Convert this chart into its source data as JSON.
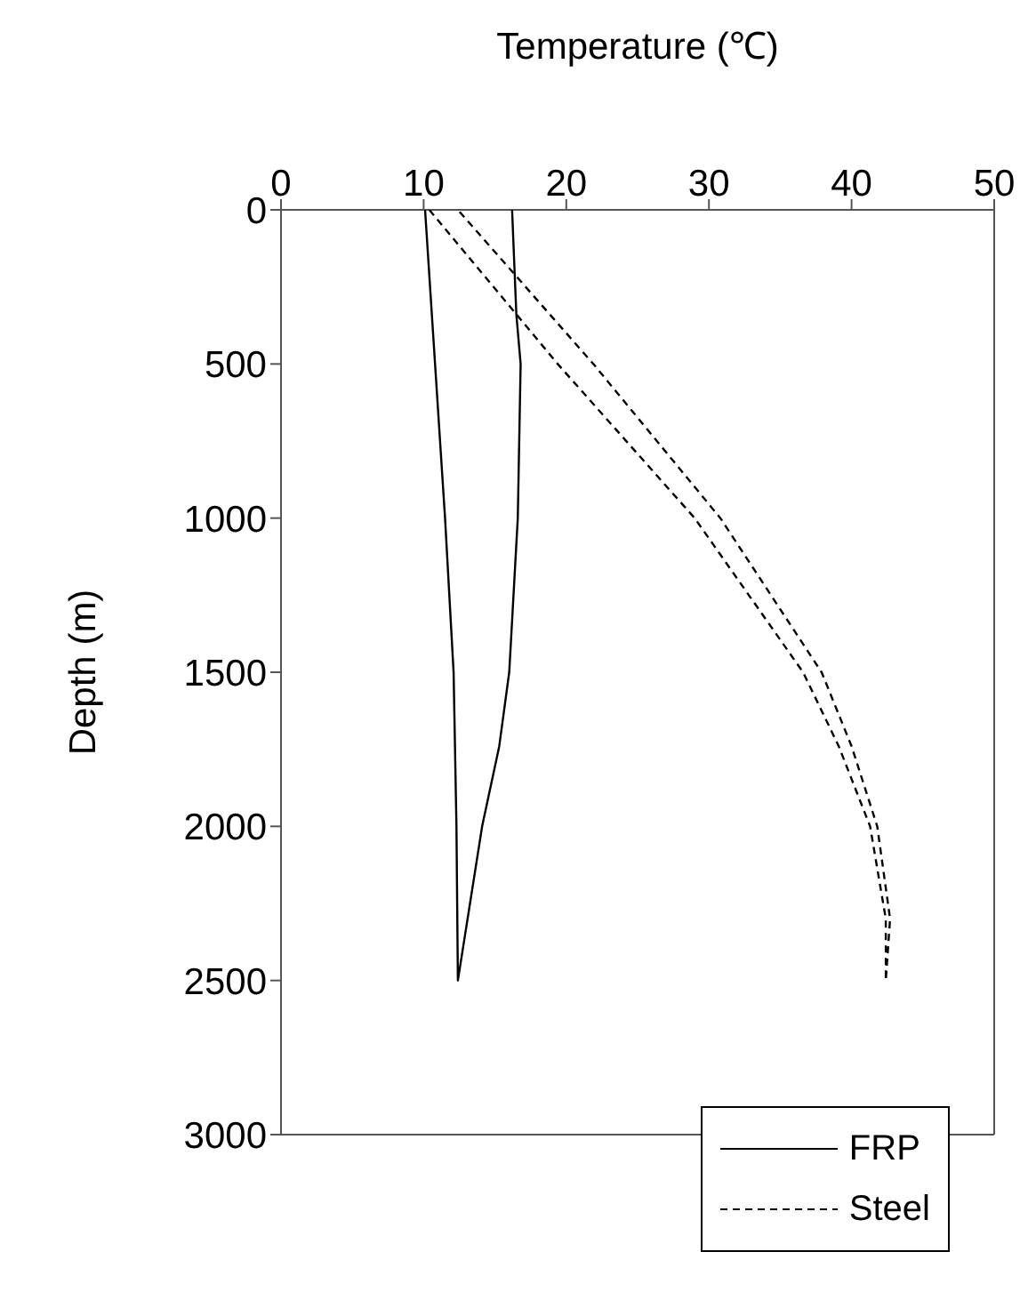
{
  "chart_data": {
    "type": "line",
    "xlabel": "Temperature (℃)",
    "ylabel": "Depth (m)",
    "xlim": [
      0,
      50
    ],
    "xticks": [
      0,
      10,
      20,
      30,
      40,
      50
    ],
    "ylim": [
      3000,
      0
    ],
    "yticks": [
      0,
      500,
      1000,
      1500,
      2000,
      2500,
      3000
    ],
    "grid": false,
    "legend": "bottom right",
    "marker": "none",
    "series": [
      {
        "name": "FRP",
        "color": "#000000",
        "line_style": "solid",
        "x": [
          10.1,
          10.8,
          11.5,
          12.1,
          12.3,
          12.4,
          14.1,
          15.3,
          16.0,
          16.6,
          16.8,
          16.5,
          16.2
        ],
        "values": [
          0,
          500,
          1000,
          1500,
          2000,
          2500,
          2000,
          1740,
          1500,
          1000,
          500,
          340,
          0
        ]
      },
      {
        "name": "Steel",
        "color": "#000000",
        "line_style": "dashed",
        "x": [
          10.4,
          19.4,
          29.0,
          36.6,
          39.1,
          41.3,
          42.4,
          42.4,
          42.7,
          41.8,
          40.0,
          37.9,
          30.8,
          21.9,
          12.4
        ],
        "values": [
          0,
          500,
          1000,
          1500,
          1740,
          2000,
          2300,
          2500,
          2300,
          2000,
          1740,
          1500,
          1000,
          500,
          0
        ]
      }
    ]
  }
}
